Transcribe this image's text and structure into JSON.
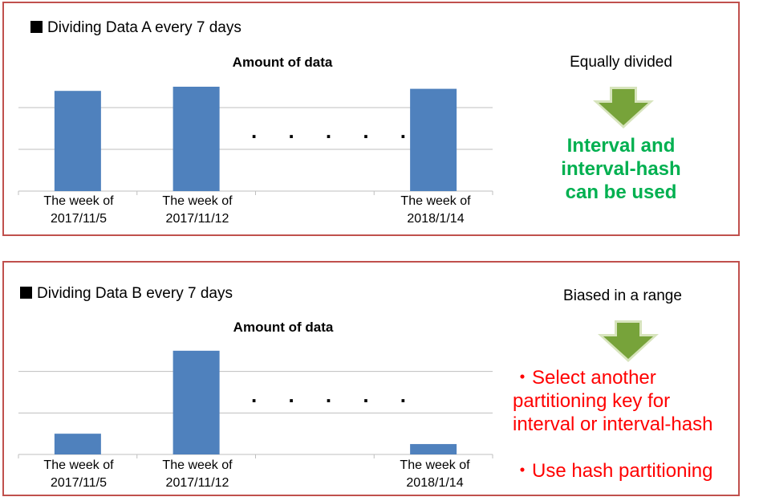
{
  "chart_data": [
    {
      "type": "bar",
      "heading": "Dividing Data A every 7 days",
      "title": "Amount of data",
      "categories": [
        "The week of\n2017/11/5",
        "The week of\n2017/11/12",
        "",
        "The week of\n2018/1/14"
      ],
      "values": [
        2.4,
        2.5,
        null,
        2.45
      ],
      "ellipsis": ". . . . .",
      "ylim": [
        0,
        3
      ],
      "grid": true,
      "series_color": "#4f81bd"
    },
    {
      "type": "bar",
      "heading": "Dividing Data B every 7 days",
      "title": "Amount of data",
      "categories": [
        "The week of\n2017/11/5",
        "The week of\n2017/11/12",
        "",
        "The week of\n2018/1/14"
      ],
      "values": [
        0.5,
        2.5,
        null,
        0.25
      ],
      "ellipsis": ". . . . .",
      "ylim": [
        0,
        3
      ],
      "grid": true,
      "series_color": "#4f81bd"
    }
  ],
  "panel_a": {
    "side_label": "Equally divided",
    "conclusion": [
      "Interval and",
      "interval-hash",
      "can be used"
    ],
    "conclusion_color": "#00b050"
  },
  "panel_b": {
    "side_label": "Biased in a range",
    "conclusion": [
      "・Select another",
      "partitioning key for",
      "interval or interval-hash",
      "",
      "・Use hash partitioning"
    ],
    "conclusion_color": "#ff0000"
  },
  "colors": {
    "border": "#c0504d",
    "arrow": "#77a33a",
    "bar": "#4f81bd",
    "grid": "#bfbfbf"
  }
}
